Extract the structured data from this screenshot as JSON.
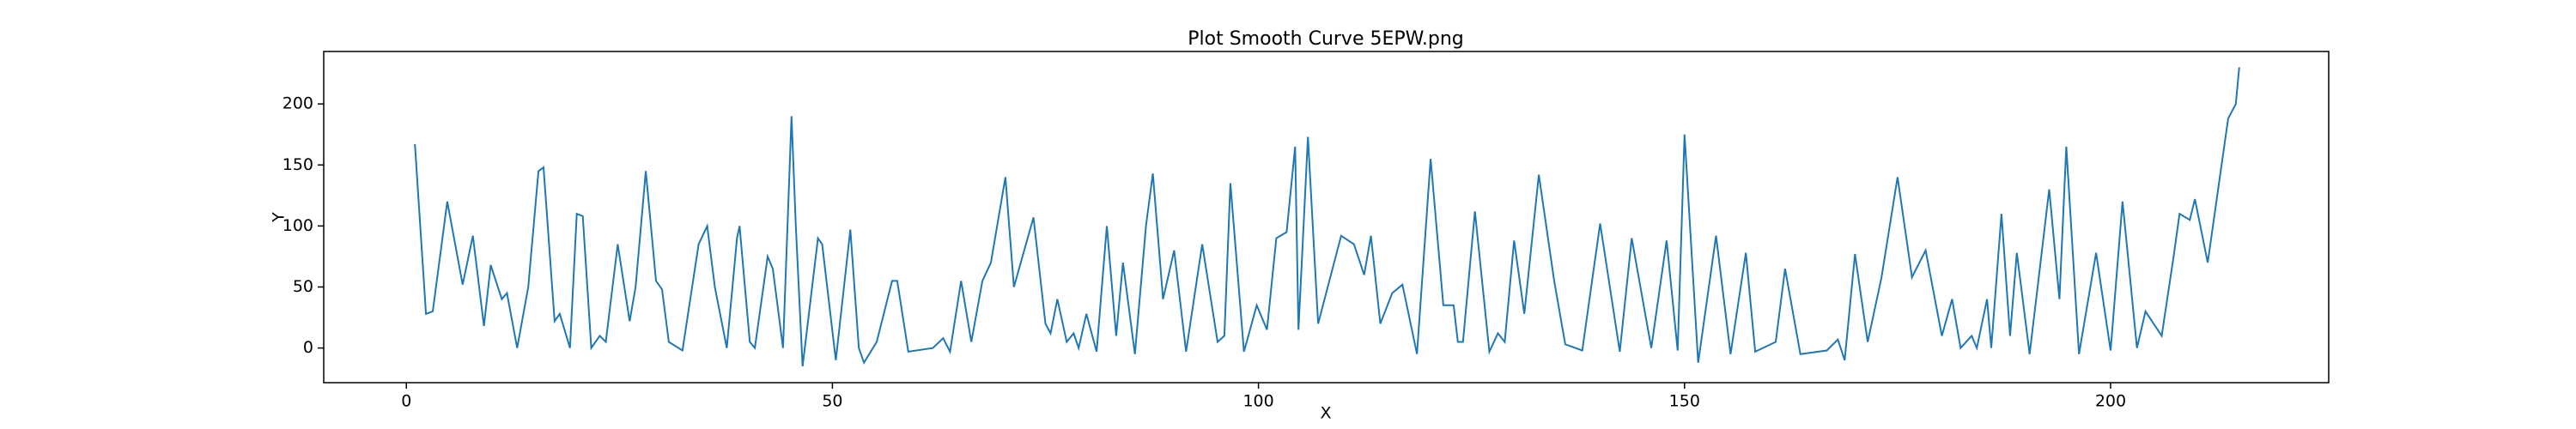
{
  "chart_data": {
    "type": "line",
    "title": "Plot Smooth Curve 5EPW.png",
    "x_label": "X",
    "y_label": "Y",
    "xlim": [
      -9.7,
      225.6
    ],
    "ylim": [
      -28.4,
      243
    ],
    "xticks": [
      0,
      50,
      100,
      150,
      200
    ],
    "yticks": [
      0,
      50,
      100,
      150,
      200
    ],
    "series": [
      {
        "color": "#1f77b4",
        "x": [
          1.0,
          2.3,
          3.1,
          4.8,
          6.6,
          7.8,
          9.1,
          9.9,
          11.2,
          11.8,
          13.0,
          14.3,
          15.5,
          16.1,
          17.4,
          18.0,
          19.2,
          20.0,
          20.7,
          21.7,
          22.7,
          23.4,
          24.8,
          26.2,
          26.9,
          28.1,
          29.3,
          30.0,
          30.8,
          32.4,
          34.3,
          35.3,
          36.2,
          37.6,
          38.8,
          39.1,
          40.3,
          40.9,
          42.4,
          43.0,
          44.2,
          45.2,
          45.7,
          46.5,
          48.3,
          48.8,
          50.4,
          52.1,
          53.1,
          53.7,
          55.2,
          57.0,
          57.6,
          58.9,
          61.8,
          63.0,
          63.8,
          65.1,
          66.3,
          67.6,
          68.6,
          70.3,
          71.3,
          73.6,
          75.0,
          75.6,
          76.4,
          77.5,
          78.3,
          78.9,
          79.8,
          81.0,
          82.2,
          83.3,
          84.1,
          85.5,
          86.8,
          87.6,
          88.8,
          90.1,
          91.5,
          93.4,
          95.2,
          96.0,
          96.7,
          98.3,
          99.8,
          101.0,
          102.1,
          103.3,
          104.3,
          104.7,
          105.8,
          107.0,
          109.7,
          111.2,
          112.4,
          113.2,
          114.3,
          115.7,
          116.9,
          118.6,
          120.2,
          121.7,
          122.9,
          123.4,
          124.0,
          125.4,
          127.1,
          128.1,
          128.9,
          130.0,
          131.2,
          132.9,
          134.7,
          136.0,
          138.0,
          140.1,
          142.4,
          143.8,
          146.1,
          147.9,
          149.2,
          150.0,
          151.6,
          153.7,
          155.4,
          157.2,
          158.3,
          160.7,
          161.8,
          163.6,
          166.7,
          168.0,
          168.8,
          170.0,
          171.5,
          173.1,
          175.0,
          176.7,
          178.3,
          180.2,
          181.4,
          182.4,
          183.7,
          184.3,
          185.5,
          186.0,
          187.2,
          188.2,
          189.0,
          190.5,
          192.8,
          194.0,
          194.8,
          196.3,
          198.3,
          200.0,
          201.4,
          203.1,
          204.1,
          206.0,
          207.4,
          208.1,
          209.3,
          209.9,
          211.4,
          213.8,
          214.7,
          215.1
        ],
        "values": [
          167,
          28,
          30,
          120,
          52,
          92,
          18,
          68,
          40,
          45,
          0,
          50,
          145,
          148,
          22,
          28,
          0,
          110,
          108,
          0,
          10,
          5,
          85,
          22,
          50,
          145,
          55,
          48,
          5,
          -2,
          85,
          100,
          50,
          0,
          90,
          100,
          5,
          0,
          75,
          65,
          0,
          190,
          100,
          -15,
          90,
          85,
          -10,
          97,
          0,
          -12,
          5,
          55,
          55,
          -3,
          0,
          8,
          -3,
          55,
          5,
          55,
          70,
          140,
          50,
          107,
          20,
          12,
          40,
          5,
          12,
          0,
          28,
          -3,
          100,
          10,
          70,
          -5,
          100,
          143,
          40,
          80,
          -3,
          85,
          5,
          10,
          135,
          -3,
          35,
          15,
          90,
          95,
          165,
          15,
          173,
          20,
          92,
          85,
          60,
          92,
          20,
          45,
          52,
          -5,
          155,
          35,
          35,
          5,
          5,
          112,
          -3,
          12,
          5,
          88,
          28,
          142,
          55,
          3,
          -2,
          102,
          -3,
          90,
          0,
          88,
          -2,
          175,
          -12,
          92,
          -5,
          78,
          -3,
          5,
          65,
          -5,
          -2,
          7,
          -10,
          77,
          5,
          57,
          140,
          58,
          80,
          10,
          40,
          0,
          10,
          0,
          40,
          0,
          110,
          10,
          78,
          -5,
          130,
          40,
          165,
          -5,
          78,
          -2,
          120,
          0,
          30,
          10,
          75,
          110,
          105,
          122,
          70,
          188,
          200,
          230
        ]
      }
    ]
  }
}
